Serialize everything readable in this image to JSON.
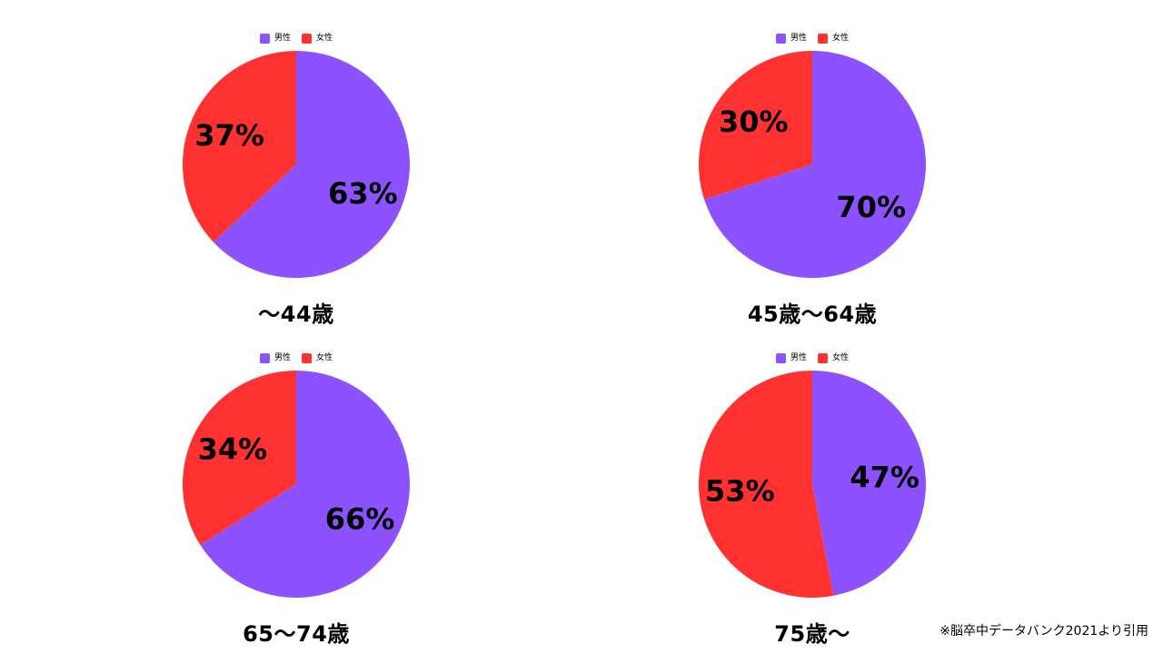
{
  "colors": {
    "male": "#8c52ff",
    "female": "#ff3131"
  },
  "legend": {
    "male": "男性",
    "female": "女性"
  },
  "chart_data": [
    {
      "type": "pie",
      "title": "～44歳",
      "categories": [
        "男性",
        "女性"
      ],
      "values": [
        63,
        37
      ],
      "labels": [
        "63%",
        "37%"
      ]
    },
    {
      "type": "pie",
      "title": "45歳～64歳",
      "categories": [
        "男性",
        "女性"
      ],
      "values": [
        70,
        30
      ],
      "labels": [
        "70%",
        "30%"
      ]
    },
    {
      "type": "pie",
      "title": "65～74歳",
      "categories": [
        "男性",
        "女性"
      ],
      "values": [
        66,
        34
      ],
      "labels": [
        "66%",
        "34%"
      ]
    },
    {
      "type": "pie",
      "title": "75歳～",
      "categories": [
        "男性",
        "女性"
      ],
      "values": [
        47,
        53
      ],
      "labels": [
        "47%",
        "53%"
      ]
    }
  ],
  "source_note": "※脳卒中データバンク2021より引用"
}
